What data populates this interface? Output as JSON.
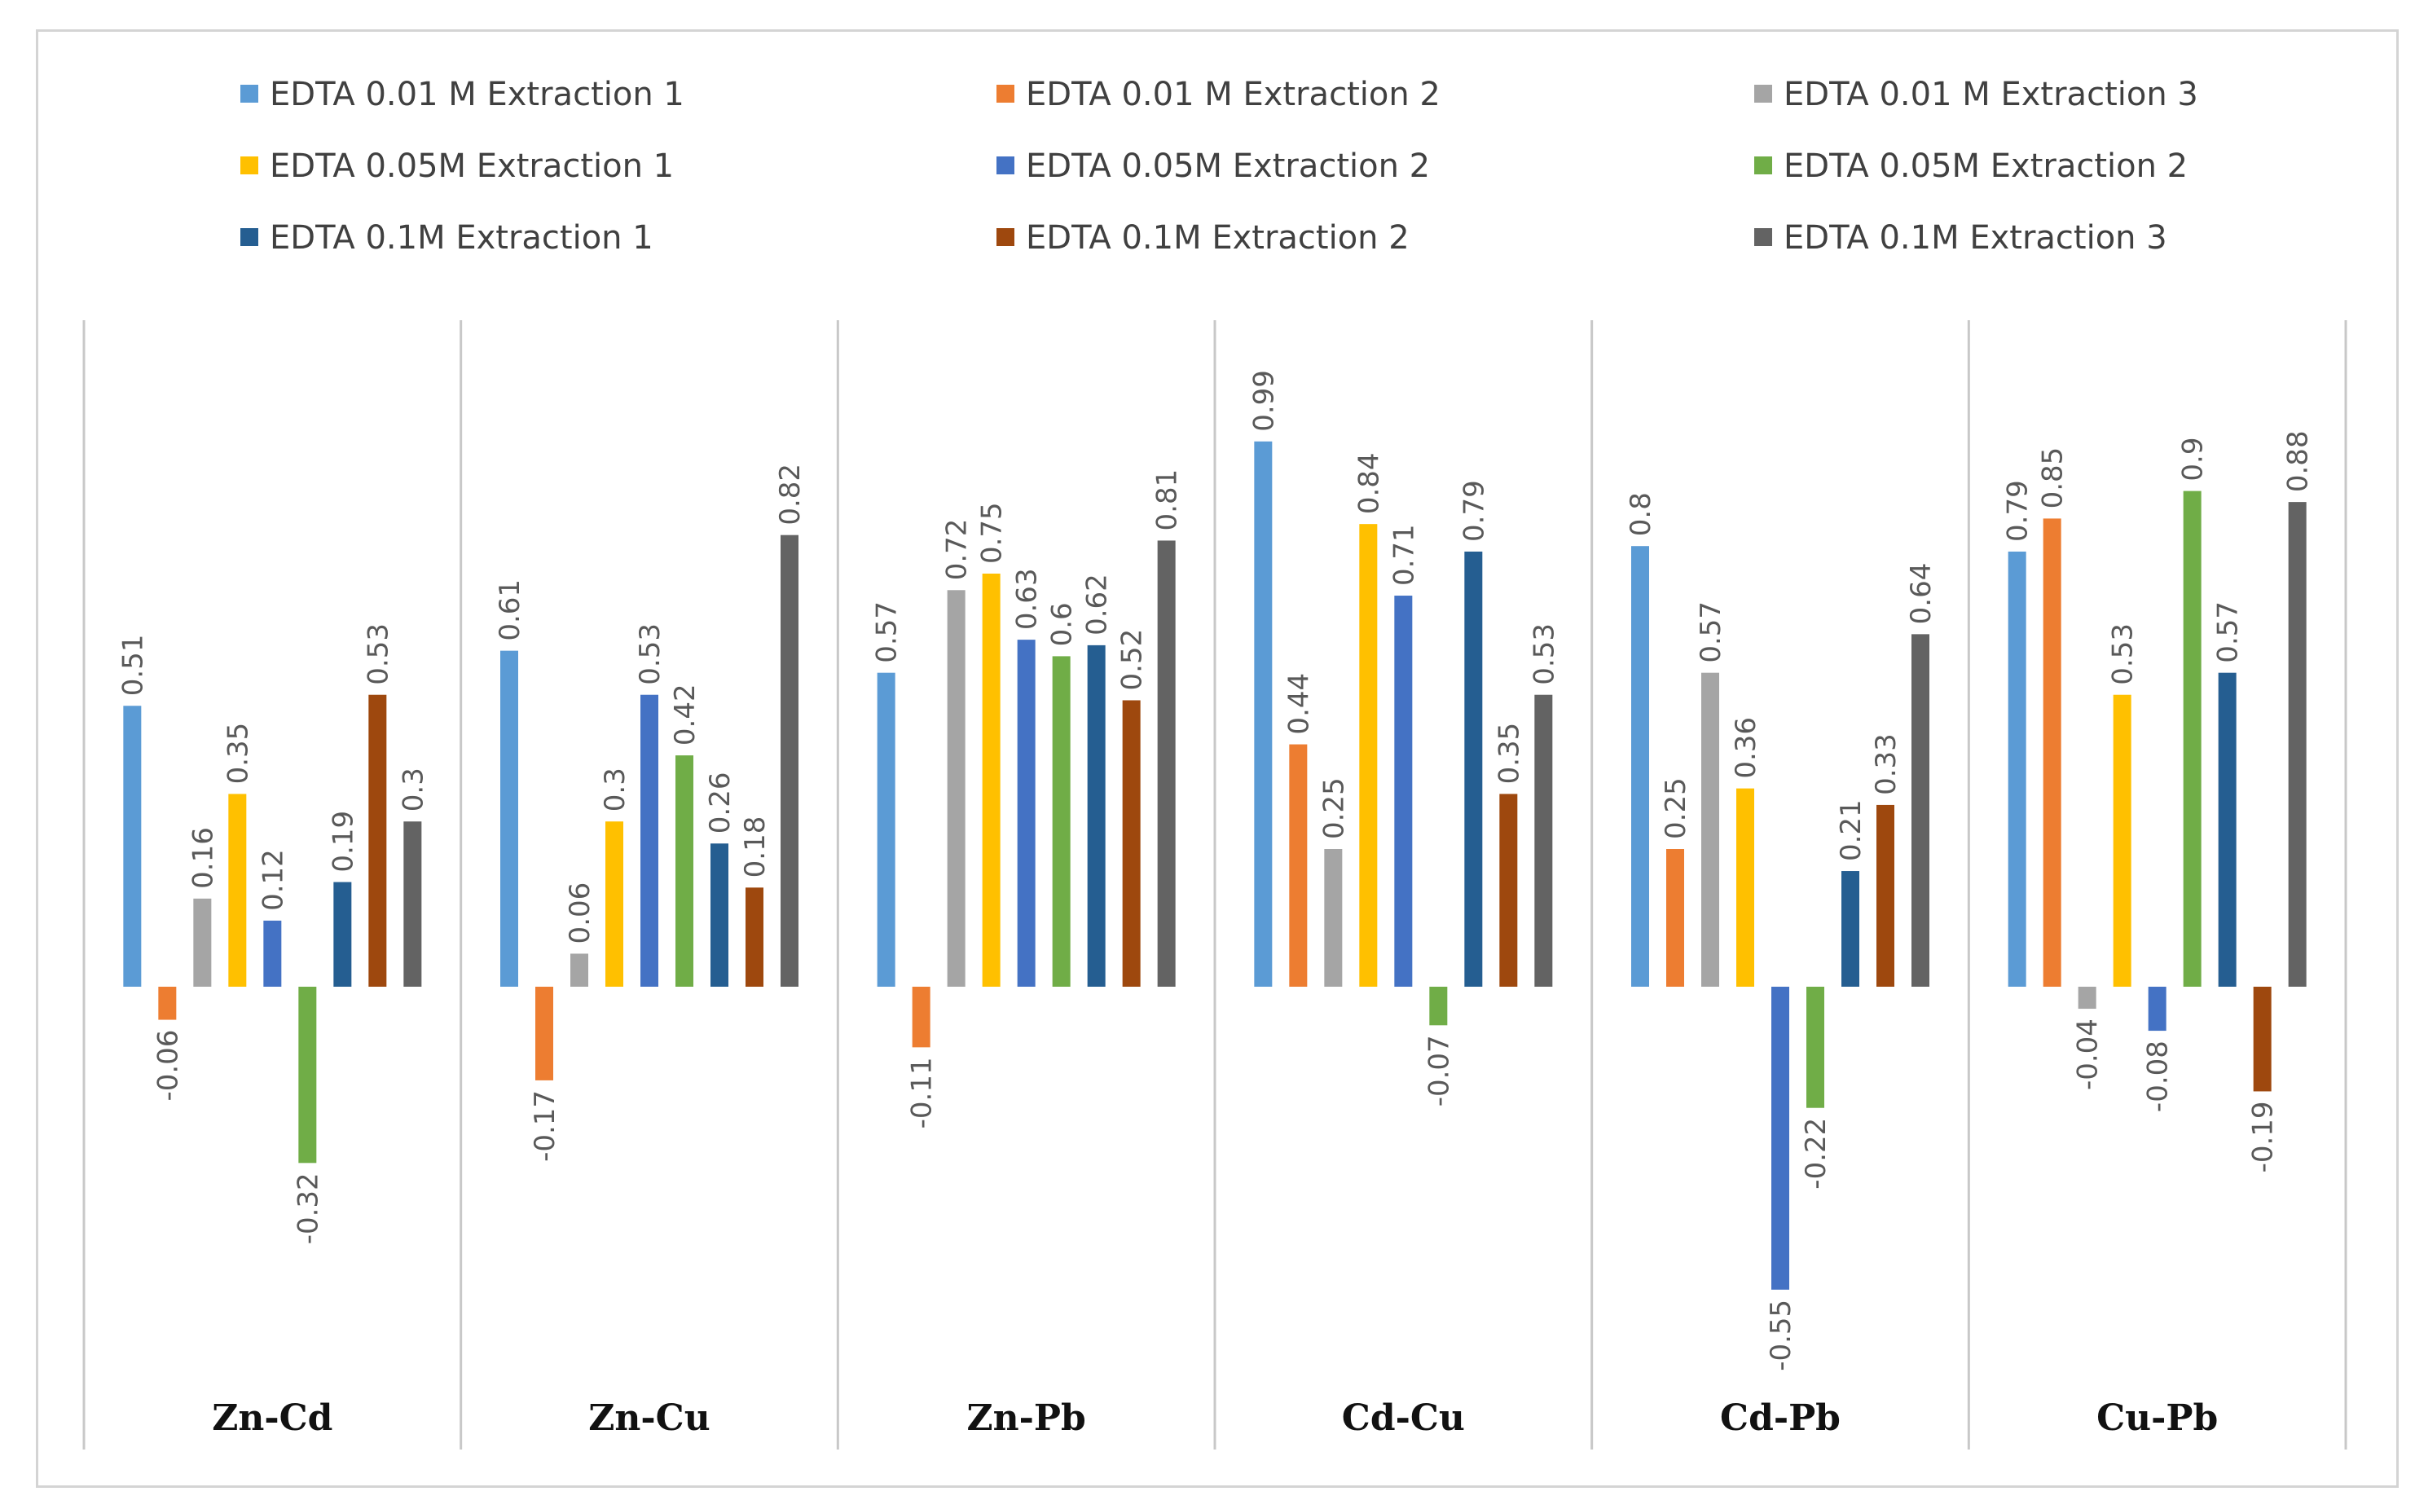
{
  "chart_data": {
    "type": "bar",
    "title": "",
    "xlabel": "",
    "ylabel": "",
    "ylim": [
      -0.6,
      1.05
    ],
    "grid": false,
    "legend_position": "top",
    "categories": [
      "Zn-Cd",
      "Zn-Cu",
      "Zn-Pb",
      "Cd-Cu",
      "Cd-Pb",
      "Cu-Pb"
    ],
    "series": [
      {
        "name": "EDTA 0.01 M Extraction 1",
        "color": "#5b9bd5",
        "values": [
          0.51,
          0.61,
          0.57,
          0.99,
          0.8,
          0.79
        ],
        "labels": [
          "0.51",
          "0.61",
          "0.57",
          "0.99",
          "0.8",
          "0.79"
        ]
      },
      {
        "name": "EDTA 0.01 M Extraction 2",
        "color": "#ed7d31",
        "values": [
          -0.06,
          -0.17,
          -0.11,
          0.44,
          0.25,
          0.85
        ],
        "labels": [
          "-0.06",
          "-0.17",
          "-0.11",
          "0.44",
          "0.25",
          "0.85"
        ]
      },
      {
        "name": "EDTA 0.01 M Extraction 3",
        "color": "#a5a5a5",
        "values": [
          0.16,
          0.06,
          0.72,
          0.25,
          0.57,
          -0.04
        ],
        "labels": [
          "0.16",
          "0.06",
          "0.72",
          "0.25",
          "0.57",
          "-0.04"
        ]
      },
      {
        "name": "EDTA 0.05M Extraction 1",
        "color": "#ffc000",
        "values": [
          0.35,
          0.3,
          0.75,
          0.84,
          0.36,
          0.53
        ],
        "labels": [
          "0.35",
          "0.3",
          "0.75",
          "0.84",
          "0.36",
          "0.53"
        ]
      },
      {
        "name": "EDTA 0.05M Extraction 2",
        "color": "#4472c4",
        "values": [
          0.12,
          0.53,
          0.63,
          0.71,
          -0.55,
          -0.08
        ],
        "labels": [
          "0.12",
          "0.53",
          "0.63",
          "0.71",
          "-0.55",
          "-0.08"
        ]
      },
      {
        "name": "EDTA 0.05M Extraction 2",
        "color": "#70ad47",
        "values": [
          -0.32,
          0.42,
          0.6,
          -0.07,
          -0.22,
          0.9
        ],
        "labels": [
          "-0.32",
          "0.42",
          "0.6",
          "-0.07",
          "-0.22",
          "0.9"
        ]
      },
      {
        "name": "EDTA 0.1M Extraction 1",
        "color": "#255e91",
        "values": [
          0.19,
          0.26,
          0.62,
          0.79,
          0.21,
          0.57
        ],
        "labels": [
          "0.19",
          "0.26",
          "0.62",
          "0.79",
          "0.21",
          "0.57"
        ]
      },
      {
        "name": "EDTA 0.1M Extraction 2",
        "color": "#9e480e",
        "values": [
          0.53,
          0.18,
          0.52,
          0.35,
          0.33,
          -0.19
        ],
        "labels": [
          "0.53",
          "0.18",
          "0.52",
          "0.35",
          "0.33",
          "-0.19"
        ]
      },
      {
        "name": "EDTA 0.1M Extraction 3",
        "color": "#636363",
        "values": [
          0.3,
          0.82,
          0.81,
          0.53,
          0.64,
          0.88
        ],
        "labels": [
          "0.3",
          "0.82",
          "0.81",
          "0.53",
          "0.64",
          "0.88"
        ]
      }
    ]
  }
}
